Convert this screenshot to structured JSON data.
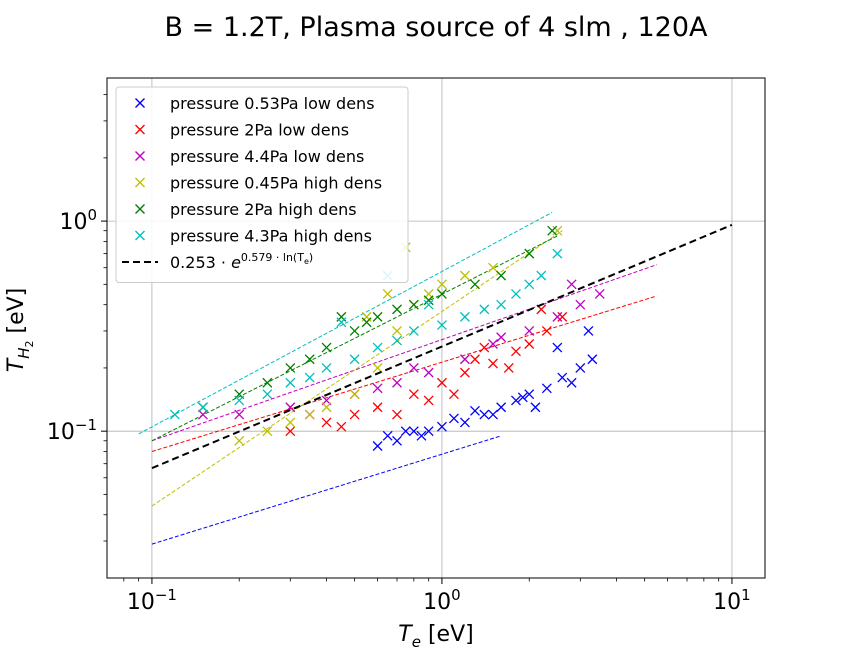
{
  "chart_data": {
    "type": "scatter",
    "title": "B = 1.2T, Plasma source of 4 slm , 120A",
    "xlabel": "T_e [eV]",
    "ylabel": "T_{H_2} [eV]",
    "xscale": "log",
    "yscale": "log",
    "xlim": [
      0.07,
      13
    ],
    "ylim": [
      0.02,
      4.8
    ],
    "x_ticks": [
      {
        "value": 0.1,
        "base": "10",
        "exp": "−1"
      },
      {
        "value": 1,
        "base": "10",
        "exp": "0"
      },
      {
        "value": 10,
        "base": "10",
        "exp": "1"
      }
    ],
    "y_ticks": [
      {
        "value": 0.1,
        "base": "10",
        "exp": "−1"
      },
      {
        "value": 1,
        "base": "10",
        "exp": "0"
      }
    ],
    "grid": true,
    "legend_position": "upper-left",
    "series": [
      {
        "name": "pressure 0.53Pa low dens",
        "color": "#0000ff",
        "marker": "x",
        "x": [
          0.6,
          0.7,
          0.8,
          0.9,
          1.0,
          1.2,
          1.4,
          1.6,
          1.8,
          2.0,
          2.3,
          2.6,
          3.0,
          3.3,
          0.65,
          0.85,
          1.1,
          1.5,
          2.1,
          2.8,
          3.2,
          0.75,
          1.3,
          1.9,
          2.5
        ],
        "y": [
          0.085,
          0.09,
          0.1,
          0.1,
          0.105,
          0.11,
          0.12,
          0.13,
          0.14,
          0.15,
          0.16,
          0.18,
          0.2,
          0.22,
          0.095,
          0.095,
          0.115,
          0.12,
          0.13,
          0.17,
          0.3,
          0.1,
          0.125,
          0.145,
          0.25
        ],
        "trend": {
          "x": [
            0.1,
            1.6
          ],
          "y": [
            0.029,
            0.095
          ]
        }
      },
      {
        "name": "pressure 2Pa low dens",
        "color": "#ff0000",
        "marker": "x",
        "x": [
          0.3,
          0.4,
          0.5,
          0.6,
          0.8,
          1.0,
          1.2,
          1.5,
          1.8,
          2.0,
          2.3,
          2.6,
          0.45,
          0.7,
          1.1,
          1.4,
          1.7,
          2.2,
          0.9,
          1.3
        ],
        "y": [
          0.1,
          0.11,
          0.12,
          0.13,
          0.15,
          0.17,
          0.19,
          0.21,
          0.24,
          0.26,
          0.3,
          0.35,
          0.105,
          0.12,
          0.15,
          0.25,
          0.2,
          0.38,
          0.14,
          0.22
        ],
        "trend": {
          "x": [
            0.1,
            5.5
          ],
          "y": [
            0.08,
            0.44
          ]
        }
      },
      {
        "name": "pressure 4.4Pa low dens",
        "color": "#bf00bf",
        "marker": "x",
        "x": [
          0.15,
          0.2,
          0.3,
          0.4,
          0.5,
          0.7,
          0.9,
          1.2,
          1.5,
          2.0,
          2.5,
          3.0,
          3.5,
          0.35,
          0.8,
          1.6,
          2.8,
          0.6
        ],
        "y": [
          0.12,
          0.12,
          0.13,
          0.14,
          0.15,
          0.17,
          0.19,
          0.22,
          0.26,
          0.3,
          0.35,
          0.4,
          0.45,
          0.12,
          0.2,
          0.28,
          0.5,
          0.16
        ],
        "trend": {
          "x": [
            0.1,
            5.5
          ],
          "y": [
            0.09,
            0.62
          ]
        }
      },
      {
        "name": "pressure 0.45Pa high dens",
        "color": "#bfbf00",
        "marker": "x",
        "x": [
          0.2,
          0.25,
          0.3,
          0.4,
          0.5,
          0.6,
          0.7,
          0.8,
          0.9,
          1.0,
          1.2,
          1.5,
          2.0,
          2.5,
          0.35,
          0.55,
          0.75,
          0.65
        ],
        "y": [
          0.09,
          0.1,
          0.11,
          0.13,
          0.15,
          0.2,
          0.3,
          0.4,
          0.45,
          0.5,
          0.55,
          0.6,
          0.7,
          0.9,
          0.12,
          0.35,
          0.75,
          0.45
        ],
        "trend": {
          "x": [
            0.1,
            2.6
          ],
          "y": [
            0.044,
            0.9
          ]
        }
      },
      {
        "name": "pressure 2Pa high dens",
        "color": "#007f00",
        "marker": "x",
        "x": [
          0.15,
          0.2,
          0.25,
          0.3,
          0.4,
          0.5,
          0.6,
          0.7,
          0.8,
          1.0,
          1.3,
          1.6,
          2.0,
          2.4,
          0.35,
          0.45,
          0.55,
          0.9
        ],
        "y": [
          0.13,
          0.15,
          0.17,
          0.2,
          0.25,
          0.3,
          0.35,
          0.38,
          0.4,
          0.45,
          0.5,
          0.55,
          0.7,
          0.9,
          0.22,
          0.35,
          0.33,
          0.42
        ],
        "trend": {
          "x": [
            0.1,
            2.5
          ],
          "y": [
            0.09,
            0.85
          ]
        }
      },
      {
        "name": "pressure 4.3Pa high dens",
        "color": "#00bfbf",
        "marker": "x",
        "x": [
          0.12,
          0.15,
          0.2,
          0.25,
          0.3,
          0.35,
          0.4,
          0.5,
          0.6,
          0.7,
          0.8,
          1.0,
          1.2,
          1.4,
          1.6,
          1.8,
          2.0,
          2.2,
          2.5,
          0.45,
          0.9,
          0.65
        ],
        "y": [
          0.12,
          0.13,
          0.14,
          0.15,
          0.17,
          0.18,
          0.2,
          0.22,
          0.25,
          0.27,
          0.3,
          0.32,
          0.35,
          0.38,
          0.4,
          0.45,
          0.5,
          0.55,
          0.7,
          0.33,
          0.4,
          0.55
        ],
        "trend": {
          "x": [
            0.09,
            2.4
          ],
          "y": [
            0.097,
            1.1
          ]
        }
      }
    ],
    "fit": {
      "name": "0.253 · e^{0.579 · ln(T_e)}",
      "legend_prefix": "0.253 · ",
      "legend_base": "e",
      "legend_exp": "0.579 · ln(T",
      "legend_exp_sub": "e",
      "legend_exp_end": ")",
      "color": "#000000",
      "style": "dashed",
      "coef": 0.253,
      "exponent": 0.579,
      "x": [
        0.1,
        10
      ]
    }
  }
}
